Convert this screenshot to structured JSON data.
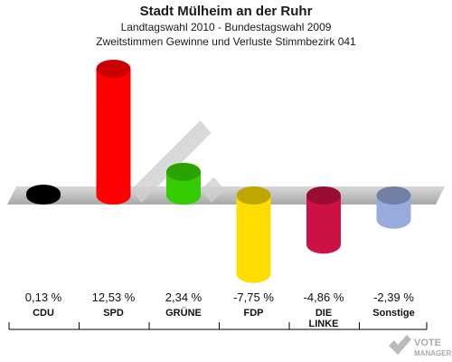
{
  "header": {
    "title": "Stadt Mülheim an der Ruhr",
    "subtitle1": "Landtagswahl 2010 - Bundestagswahl 2009",
    "subtitle2": "Zweitstimmen Gewinne und Verluste Stimmbezirk 041"
  },
  "watermark": {
    "line1": "VOTE",
    "line2": "MANAGER"
  },
  "chart_data": {
    "type": "bar",
    "categories": [
      "CDU",
      "SPD",
      "GRÜNE",
      "FDP",
      "DIE LINKE",
      "Sonstige"
    ],
    "category_lines": [
      [
        "CDU"
      ],
      [
        "SPD"
      ],
      [
        "GRÜNE"
      ],
      [
        "FDP"
      ],
      [
        "DIE",
        "LINKE"
      ],
      [
        "Sonstige"
      ]
    ],
    "values": [
      0.13,
      12.53,
      2.34,
      -7.75,
      -4.86,
      -2.39
    ],
    "value_labels": [
      "0,13 %",
      "12,53 %",
      "2,34 %",
      "-7,75 %",
      "-4,86 %",
      "-2,39 %"
    ],
    "colors": [
      "#000000",
      "#ff0000",
      "#33cc00",
      "#ffdd00",
      "#cc1144",
      "#99aadd"
    ],
    "ylim": [
      -12.53,
      12.53
    ],
    "title": "",
    "xlabel": "",
    "ylabel": ""
  }
}
